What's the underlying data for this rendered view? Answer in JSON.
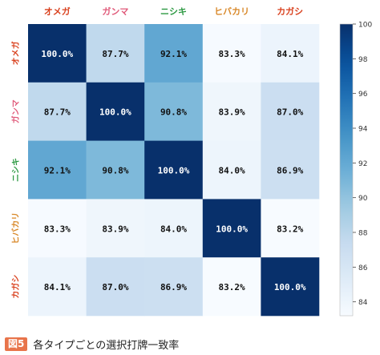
{
  "chart_data": {
    "type": "heatmap",
    "title": "",
    "rows": [
      "オメガ",
      "ガンマ",
      "ニシキ",
      "ヒバカリ",
      "カガシ"
    ],
    "columns": [
      "オメガ",
      "ガンマ",
      "ニシキ",
      "ヒバカリ",
      "カガシ"
    ],
    "values": [
      [
        100.0,
        87.7,
        92.1,
        83.3,
        84.1
      ],
      [
        87.7,
        100.0,
        90.8,
        83.9,
        87.0
      ],
      [
        92.1,
        90.8,
        100.0,
        84.0,
        86.9
      ],
      [
        83.3,
        83.9,
        84.0,
        100.0,
        83.2
      ],
      [
        84.1,
        87.0,
        86.9,
        83.2,
        100.0
      ]
    ],
    "cell_labels": [
      [
        "100.0%",
        "87.7%",
        "92.1%",
        "83.3%",
        "84.1%"
      ],
      [
        "87.7%",
        "100.0%",
        "90.8%",
        "83.9%",
        "87.0%"
      ],
      [
        "92.1%",
        "90.8%",
        "100.0%",
        "84.0%",
        "86.9%"
      ],
      [
        "83.3%",
        "83.9%",
        "84.0%",
        "100.0%",
        "83.2%"
      ],
      [
        "84.1%",
        "87.0%",
        "86.9%",
        "83.2%",
        "100.0%"
      ]
    ],
    "colorbar": {
      "min": 83.2,
      "max": 100,
      "ticks": [
        "84",
        "86",
        "88",
        "90",
        "92",
        "94",
        "96",
        "98",
        "100"
      ],
      "colormap": "Blues"
    },
    "label_colors": [
      "#d9411e",
      "#e05a7a",
      "#2e9a44",
      "#d9892a",
      "#d9411e"
    ],
    "grid": false
  },
  "caption": {
    "figure_number": "図5",
    "text": "各タイプごとの選択打牌一致率"
  }
}
